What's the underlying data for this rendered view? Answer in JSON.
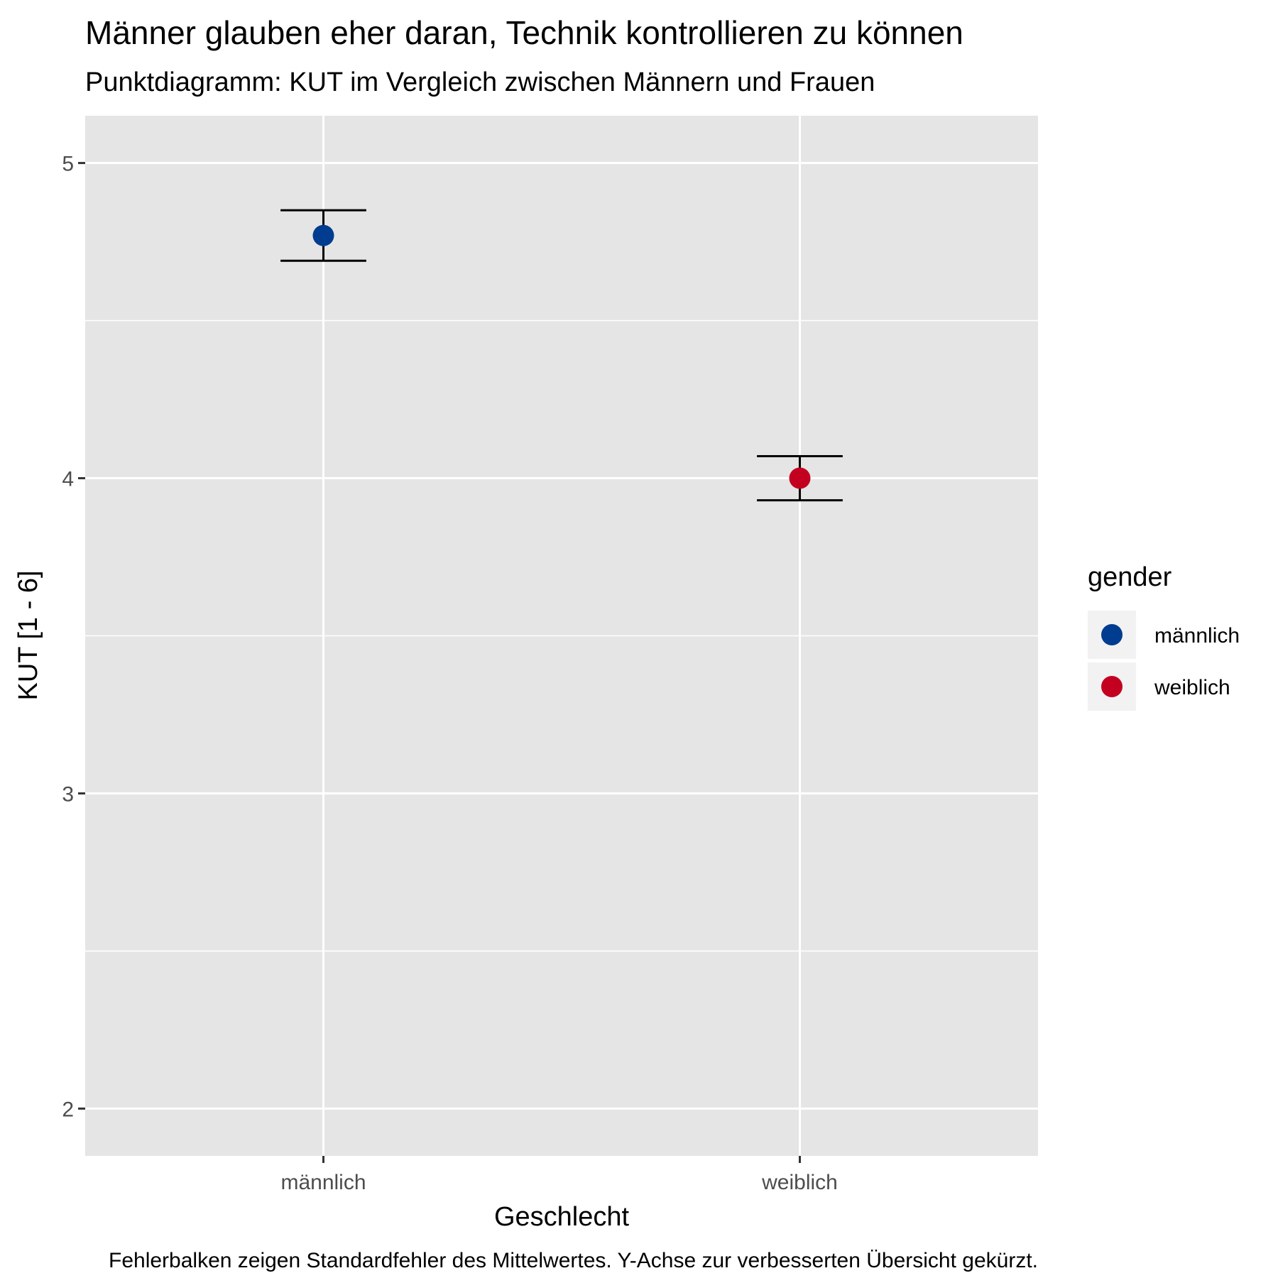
{
  "chart_data": {
    "type": "scatter",
    "title": "Männer glauben eher daran, Technik kontrollieren zu können",
    "subtitle": "Punktdiagramm: KUT im Vergleich zwischen Männern und Frauen",
    "xlabel": "Geschlecht",
    "ylabel": "KUT [1 - 6]",
    "caption": "Fehlerbalken zeigen Standardfehler des Mittelwertes. Y-Achse zur verbesserten Übersicht gekürzt.",
    "categories": [
      "männlich",
      "weiblich"
    ],
    "values": [
      4.77,
      4.0
    ],
    "error_low": [
      4.69,
      3.93
    ],
    "error_high": [
      4.85,
      4.07
    ],
    "colors": [
      "#003c8f",
      "#c3001f"
    ],
    "ylim": [
      1.85,
      5.15
    ],
    "yticks": [
      2,
      3,
      4,
      5
    ],
    "grid": true,
    "legend": {
      "title": "gender",
      "position": "right",
      "entries": [
        "männlich",
        "weiblich"
      ]
    }
  }
}
